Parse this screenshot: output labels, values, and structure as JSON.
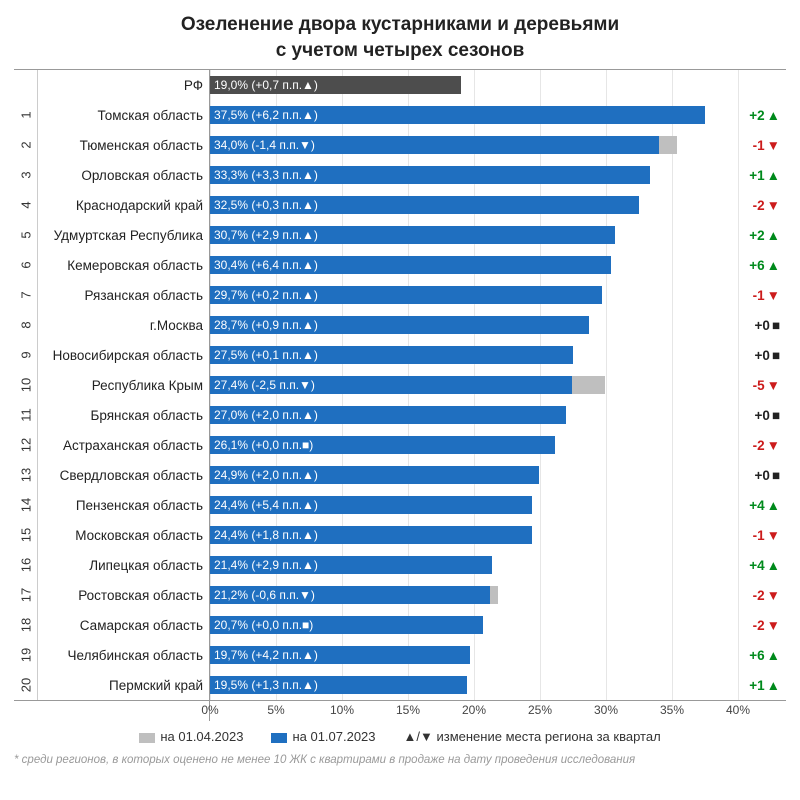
{
  "title_line1": "Озеленение двора кустарниками и деревьями",
  "title_line2": "с учетом четырех сезонов",
  "title_fontsize": 19,
  "colors": {
    "bar_cur": "#1f6fc0",
    "bar_rf": "#4d4d4d",
    "bar_prev": "#bfbfbf",
    "grid": "#e6e6e6",
    "up": "#008a1c",
    "down": "#cc1b1b",
    "flat": "#222222",
    "background": "#ffffff"
  },
  "axis": {
    "min": 0,
    "max": 40,
    "step": 5,
    "unit": "%"
  },
  "rf": {
    "label": "РФ",
    "value_cur": 19.0,
    "value_prev": 18.3,
    "text": "19,0% (+0,7 п.п.▲)"
  },
  "rows": [
    {
      "rank": "1",
      "label": "Томская область",
      "cur": 37.5,
      "prev": 31.3,
      "text": "37,5% (+6,2 п.п.▲)",
      "change": "+2",
      "dir": "up"
    },
    {
      "rank": "2",
      "label": "Тюменская область",
      "cur": 34.0,
      "prev": 35.4,
      "text": "34,0% (-1,4 п.п.▼)",
      "change": "-1",
      "dir": "down"
    },
    {
      "rank": "3",
      "label": "Орловская область",
      "cur": 33.3,
      "prev": 30.0,
      "text": "33,3% (+3,3 п.п.▲)",
      "change": "+1",
      "dir": "up"
    },
    {
      "rank": "4",
      "label": "Краснодарский край",
      "cur": 32.5,
      "prev": 32.2,
      "text": "32,5% (+0,3 п.п.▲)",
      "change": "-2",
      "dir": "down"
    },
    {
      "rank": "5",
      "label": "Удмуртская Республика",
      "cur": 30.7,
      "prev": 27.8,
      "text": "30,7% (+2,9 п.п.▲)",
      "change": "+2",
      "dir": "up"
    },
    {
      "rank": "6",
      "label": "Кемеровская область",
      "cur": 30.4,
      "prev": 24.0,
      "text": "30,4% (+6,4 п.п.▲)",
      "change": "+6",
      "dir": "up"
    },
    {
      "rank": "7",
      "label": "Рязанская область",
      "cur": 29.7,
      "prev": 29.5,
      "text": "29,7% (+0,2 п.п.▲)",
      "change": "-1",
      "dir": "down"
    },
    {
      "rank": "8",
      "label": "г.Москва",
      "cur": 28.7,
      "prev": 27.8,
      "text": "28,7% (+0,9 п.п.▲)",
      "change": "+0",
      "dir": "flat"
    },
    {
      "rank": "9",
      "label": "Новосибирская область",
      "cur": 27.5,
      "prev": 27.4,
      "text": "27,5% (+0,1 п.п.▲)",
      "change": "+0",
      "dir": "flat"
    },
    {
      "rank": "10",
      "label": "Республика Крым",
      "cur": 27.4,
      "prev": 29.9,
      "text": "27,4% (-2,5 п.п.▼)",
      "change": "-5",
      "dir": "down"
    },
    {
      "rank": "11",
      "label": "Брянская область",
      "cur": 27.0,
      "prev": 25.0,
      "text": "27,0% (+2,0 п.п.▲)",
      "change": "+0",
      "dir": "flat"
    },
    {
      "rank": "12",
      "label": "Астраханская область",
      "cur": 26.1,
      "prev": 26.1,
      "text": "26,1% (+0,0 п.п.■)",
      "change": "-2",
      "dir": "down"
    },
    {
      "rank": "13",
      "label": "Свердловская область",
      "cur": 24.9,
      "prev": 22.9,
      "text": "24,9% (+2,0 п.п.▲)",
      "change": "+0",
      "dir": "flat"
    },
    {
      "rank": "14",
      "label": "Пензенская область",
      "cur": 24.4,
      "prev": 19.0,
      "text": "24,4% (+5,4 п.п.▲)",
      "change": "+4",
      "dir": "up"
    },
    {
      "rank": "15",
      "label": "Московская область",
      "cur": 24.4,
      "prev": 22.6,
      "text": "24,4% (+1,8 п.п.▲)",
      "change": "-1",
      "dir": "down"
    },
    {
      "rank": "16",
      "label": "Липецкая область",
      "cur": 21.4,
      "prev": 18.5,
      "text": "21,4% (+2,9 п.п.▲)",
      "change": "+4",
      "dir": "up"
    },
    {
      "rank": "17",
      "label": "Ростовская область",
      "cur": 21.2,
      "prev": 21.8,
      "text": "21,2% (-0,6 п.п.▼)",
      "change": "-2",
      "dir": "down"
    },
    {
      "rank": "18",
      "label": "Самарская область",
      "cur": 20.7,
      "prev": 20.7,
      "text": "20,7% (+0,0 п.п.■)",
      "change": "-2",
      "dir": "down"
    },
    {
      "rank": "19",
      "label": "Челябинская область",
      "cur": 19.7,
      "prev": 15.5,
      "text": "19,7% (+4,2 п.п.▲)",
      "change": "+6",
      "dir": "up"
    },
    {
      "rank": "20",
      "label": "Пермский край",
      "cur": 19.5,
      "prev": 18.2,
      "text": "19,5% (+1,3 п.п.▲)",
      "change": "+1",
      "dir": "up"
    }
  ],
  "legend": {
    "prev_label": "на 01.04.2023",
    "cur_label": "на 01.07.2023",
    "change_label": "▲/▼ изменение места региона за квартал"
  },
  "footnote": "* среди регионов, в которых оценено не менее 10 ЖК с квартирами в продаже на дату проведения исследования",
  "symbols": {
    "up": "▲",
    "down": "▼",
    "flat": "■"
  }
}
